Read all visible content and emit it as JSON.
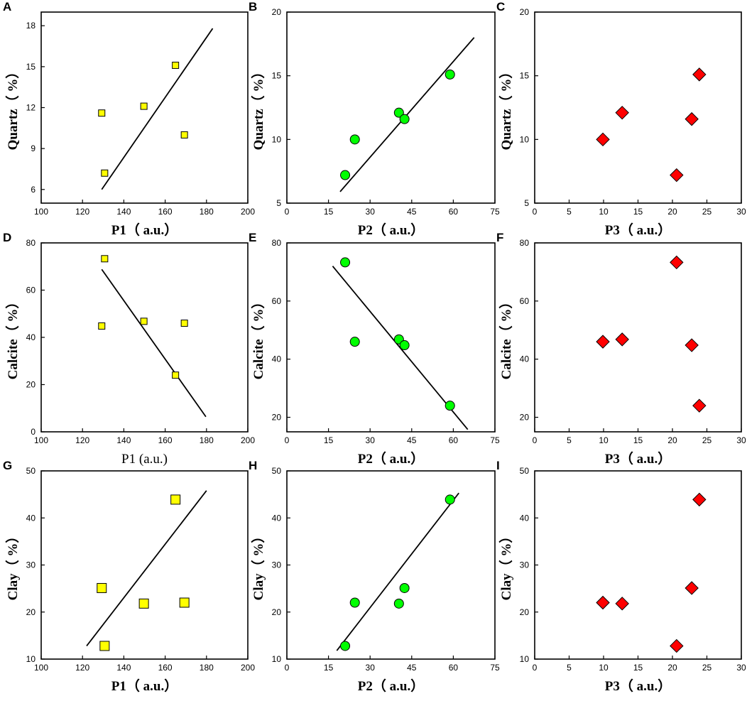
{
  "figure": {
    "background": "#ffffff"
  },
  "styles": {
    "square_fill": "#ffff00",
    "circle_fill": "#00ff00",
    "diamond_fill": "#ff0000",
    "marker_stroke": "#000000",
    "line_color": "#000000",
    "frame_color": "#000000"
  },
  "chart_data": [
    {
      "panel": "A",
      "type": "scatter",
      "marker": "square",
      "xlabel": "P1（  a.u.）",
      "ylabel": "Quartz（  %）",
      "xlim": [
        100,
        200
      ],
      "ylim": [
        5,
        19
      ],
      "xticks": [
        100,
        120,
        140,
        160,
        180,
        200
      ],
      "yticks": [
        6,
        9,
        12,
        15,
        18
      ],
      "x": [
        129.3,
        130.7,
        149.7,
        165.0,
        169.3
      ],
      "y": [
        11.6,
        7.2,
        12.1,
        15.1,
        10.0
      ],
      "fit": [
        [
          129.3,
          6.0
        ],
        [
          183.0,
          17.8
        ]
      ],
      "marker_size": "small"
    },
    {
      "panel": "B",
      "type": "scatter",
      "marker": "circle",
      "xlabel": "P2（  a.u.）",
      "ylabel": "Quartz（  %）",
      "xlim": [
        0,
        75
      ],
      "ylim": [
        5,
        20
      ],
      "xticks": [
        0,
        15,
        30,
        45,
        60,
        75
      ],
      "yticks": [
        5,
        10,
        15,
        20
      ],
      "x": [
        21.0,
        24.5,
        40.4,
        42.4,
        58.8
      ],
      "y": [
        7.2,
        10.0,
        12.1,
        11.6,
        15.1
      ],
      "fit": [
        [
          19.2,
          5.9
        ],
        [
          67.5,
          18.0
        ]
      ],
      "marker_size": "small"
    },
    {
      "panel": "C",
      "type": "scatter",
      "marker": "diamond",
      "xlabel": "P3（  a.u.）",
      "ylabel": "Quartz（  %）",
      "xlim": [
        0,
        30
      ],
      "ylim": [
        5,
        20
      ],
      "xticks": [
        0,
        5,
        10,
        15,
        20,
        25,
        30
      ],
      "yticks": [
        5,
        10,
        15,
        20
      ],
      "x": [
        9.9,
        12.7,
        20.6,
        22.8,
        23.9
      ],
      "y": [
        10.0,
        12.1,
        7.2,
        11.6,
        15.1
      ],
      "fit": null,
      "marker_size": "large"
    },
    {
      "panel": "D",
      "type": "scatter",
      "marker": "square",
      "xlabel": "P1 (a.u.)",
      "ylabel": "Calcite（  %）",
      "xlim": [
        100,
        200
      ],
      "ylim": [
        0,
        80
      ],
      "xticks": [
        100,
        120,
        140,
        160,
        180,
        200
      ],
      "yticks": [
        0,
        20,
        40,
        60,
        80
      ],
      "x": [
        129.3,
        130.7,
        149.7,
        165.0,
        169.3
      ],
      "y": [
        44.8,
        73.3,
        46.8,
        24.0,
        46.0
      ],
      "fit": [
        [
          129.3,
          68.8
        ],
        [
          179.7,
          6.4
        ]
      ],
      "marker_size": "small"
    },
    {
      "panel": "E",
      "type": "scatter",
      "marker": "circle",
      "xlabel": "P2（  a.u.）",
      "ylabel": "Calcite（  %）",
      "xlim": [
        0,
        75
      ],
      "ylim": [
        15,
        80
      ],
      "xticks": [
        0,
        15,
        30,
        45,
        60,
        75
      ],
      "yticks": [
        20,
        40,
        60,
        80
      ],
      "x": [
        21.0,
        24.5,
        40.4,
        42.4,
        58.8
      ],
      "y": [
        73.3,
        46.0,
        46.8,
        44.8,
        24.0
      ],
      "fit": [
        [
          16.5,
          72.0
        ],
        [
          65.2,
          15.8
        ]
      ],
      "marker_size": "small"
    },
    {
      "panel": "F",
      "type": "scatter",
      "marker": "diamond",
      "xlabel": "P3（  a.u.）",
      "ylabel": "Calcite（  %）",
      "xlim": [
        0,
        30
      ],
      "ylim": [
        15,
        80
      ],
      "xticks": [
        0,
        5,
        10,
        15,
        20,
        25,
        30
      ],
      "yticks": [
        20,
        40,
        60,
        80
      ],
      "x": [
        9.9,
        12.7,
        20.6,
        22.8,
        23.9
      ],
      "y": [
        46.0,
        46.8,
        73.3,
        44.8,
        24.0
      ],
      "fit": null,
      "marker_size": "large"
    },
    {
      "panel": "G",
      "type": "scatter",
      "marker": "square",
      "xlabel": "P1（  a.u.）",
      "ylabel": "Clay（  %）",
      "xlim": [
        100,
        200
      ],
      "ylim": [
        10,
        50
      ],
      "xticks": [
        100,
        120,
        140,
        160,
        180,
        200
      ],
      "yticks": [
        10,
        20,
        30,
        40,
        50
      ],
      "x": [
        129.3,
        130.7,
        149.7,
        165.0,
        169.3
      ],
      "y": [
        25.1,
        12.8,
        21.8,
        43.9,
        22.0
      ],
      "fit": [
        [
          122.0,
          12.8
        ],
        [
          180.0,
          45.8
        ]
      ],
      "marker_size": "large"
    },
    {
      "panel": "H",
      "type": "scatter",
      "marker": "circle",
      "xlabel": "P2（  a.u.）",
      "ylabel": "Clay（  %）",
      "xlim": [
        0,
        75
      ],
      "ylim": [
        10,
        50
      ],
      "xticks": [
        0,
        15,
        30,
        45,
        60,
        75
      ],
      "yticks": [
        10,
        20,
        30,
        40,
        50
      ],
      "x": [
        21.0,
        24.5,
        40.4,
        42.4,
        58.8
      ],
      "y": [
        12.8,
        22.0,
        21.8,
        25.1,
        43.9
      ],
      "fit": [
        [
          18.0,
          11.8
        ],
        [
          62.0,
          45.3
        ]
      ],
      "marker_size": "small"
    },
    {
      "panel": "I",
      "type": "scatter",
      "marker": "diamond",
      "xlabel": "P3（  a.u.）",
      "ylabel": "Clay（  %）",
      "xlim": [
        0,
        30
      ],
      "ylim": [
        10,
        50
      ],
      "xticks": [
        0,
        5,
        10,
        15,
        20,
        25,
        30
      ],
      "yticks": [
        10,
        20,
        30,
        40,
        50
      ],
      "x": [
        9.9,
        12.7,
        20.6,
        22.8,
        23.9
      ],
      "y": [
        22.0,
        21.8,
        12.8,
        25.1,
        43.9
      ],
      "fit": null,
      "marker_size": "large"
    }
  ]
}
